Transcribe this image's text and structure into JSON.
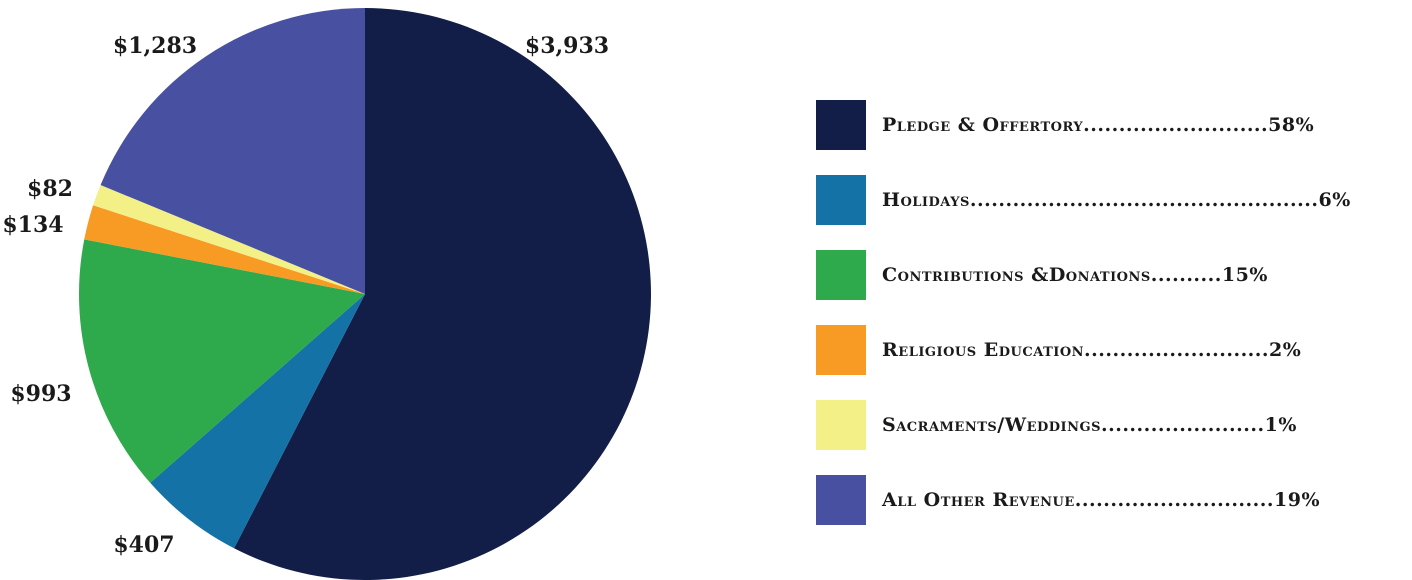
{
  "chart_data": {
    "type": "pie",
    "slices": [
      {
        "name": "Pledge & Offertory",
        "value": 3933,
        "value_label": "$3,933",
        "color": "#131e48",
        "legend_text": "Pledge & Offertory..........................58%"
      },
      {
        "name": "Holidays",
        "value": 407,
        "value_label": "$407",
        "color": "#1572a6",
        "legend_text": "Holidays.................................................6%"
      },
      {
        "name": "Contributions &Donations",
        "value": 993,
        "value_label": "$993",
        "color": "#2ea94b",
        "legend_text": "Contributions &Donations..........15%"
      },
      {
        "name": "Religious Education",
        "value": 134,
        "value_label": "$134",
        "color": "#f79b24",
        "legend_text": "Religious Education..........................2%"
      },
      {
        "name": "Sacraments/Weddings",
        "value": 82,
        "value_label": "$82",
        "color": "#f3f088",
        "legend_text": "Sacraments/Weddings.......................1%"
      },
      {
        "name": "All Other Revenue",
        "value": 1283,
        "value_label": "$1,283",
        "color": "#4750a1",
        "legend_text": "All Other Revenue............................19%"
      }
    ],
    "start": "12 o'clock",
    "direction": "clockwise",
    "legend": "right"
  }
}
